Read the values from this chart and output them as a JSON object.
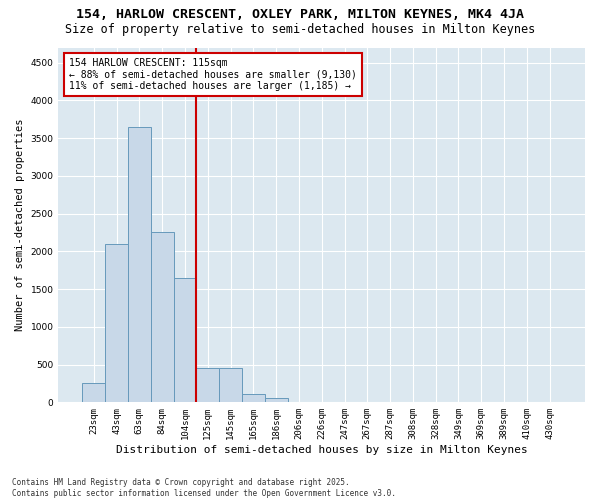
{
  "title1": "154, HARLOW CRESCENT, OXLEY PARK, MILTON KEYNES, MK4 4JA",
  "title2": "Size of property relative to semi-detached houses in Milton Keynes",
  "xlabel": "Distribution of semi-detached houses by size in Milton Keynes",
  "ylabel": "Number of semi-detached properties",
  "categories": [
    "23sqm",
    "43sqm",
    "63sqm",
    "84sqm",
    "104sqm",
    "125sqm",
    "145sqm",
    "165sqm",
    "186sqm",
    "206sqm",
    "226sqm",
    "247sqm",
    "267sqm",
    "287sqm",
    "308sqm",
    "328sqm",
    "349sqm",
    "369sqm",
    "389sqm",
    "410sqm",
    "430sqm"
  ],
  "values": [
    250,
    2100,
    3650,
    2250,
    1650,
    450,
    450,
    110,
    60,
    0,
    0,
    0,
    0,
    0,
    0,
    0,
    0,
    0,
    0,
    0,
    0
  ],
  "bar_color": "#c8d8e8",
  "bar_edge_color": "#6699bb",
  "vline_x_idx": 4.5,
  "vline_color": "#cc0000",
  "annotation_title": "154 HARLOW CRESCENT: 115sqm",
  "annotation_line1": "← 88% of semi-detached houses are smaller (9,130)",
  "annotation_line2": "11% of semi-detached houses are larger (1,185) →",
  "annotation_box_color": "#cc0000",
  "ylim": [
    0,
    4700
  ],
  "yticks": [
    0,
    500,
    1000,
    1500,
    2000,
    2500,
    3000,
    3500,
    4000,
    4500
  ],
  "plot_bg_color": "#dce8f0",
  "fig_bg_color": "#ffffff",
  "footer1": "Contains HM Land Registry data © Crown copyright and database right 2025.",
  "footer2": "Contains public sector information licensed under the Open Government Licence v3.0.",
  "title1_fontsize": 9.5,
  "title2_fontsize": 8.5,
  "xlabel_fontsize": 8,
  "ylabel_fontsize": 7.5,
  "tick_fontsize": 6.5,
  "annotation_fontsize": 7,
  "footer_fontsize": 5.5
}
